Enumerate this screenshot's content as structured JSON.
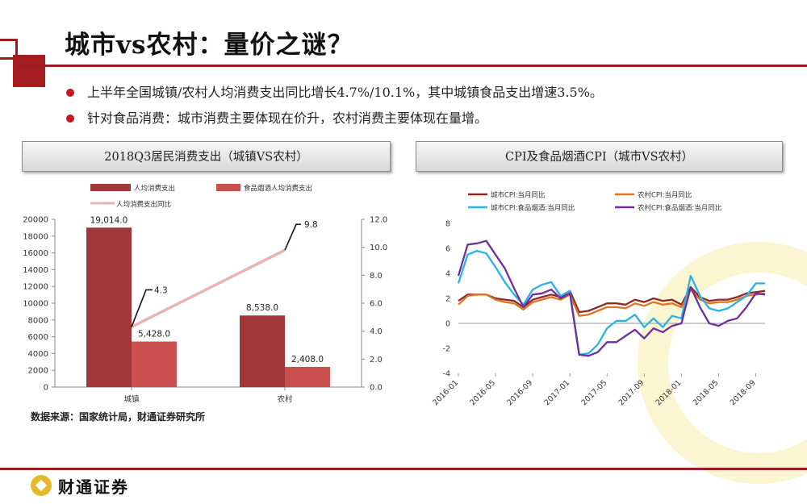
{
  "title": "城市vs农村：量价之谜？",
  "bullets": [
    "上半年全国城镇/农村人均消费支出同比增长4.7%/10.1%，其中城镇食品支出增速3.5%。",
    "针对食品消费：城市消费主要体现在价升，农村消费主要体现在量增。"
  ],
  "left_panel_title": "2018Q3居民消费支出（城镇VS农村）",
  "right_panel_title": "CPI及食品烟酒CPI（城市VS农村）",
  "source": "数据来源：国家统计局，财通证券研究所",
  "logo_text": "财通证券",
  "colors": {
    "accent": "#9b1b1f",
    "bar1": "#a2373a",
    "bar2": "#c9504f",
    "line_pct": "#e7b3b5"
  },
  "chart_data": [
    {
      "type": "bar",
      "categories": [
        "城镇",
        "农村"
      ],
      "series": [
        {
          "name": "人均消费支出",
          "values": [
            19014.0,
            8538.0
          ],
          "labels": [
            "19,014.0",
            "8,538.0"
          ],
          "color": "#a2373a"
        },
        {
          "name": "食品烟酒人均消费支出",
          "values": [
            5428.0,
            2408.0
          ],
          "labels": [
            "5,428.0",
            "2,408.0"
          ],
          "color": "#c9504f"
        },
        {
          "name": "人均消费支出同比",
          "axis": "right",
          "values": [
            4.3,
            9.8
          ],
          "labels": [
            "4.3",
            "9.8"
          ],
          "color": "#e7b3b5"
        }
      ],
      "ylim": [
        0,
        20000
      ],
      "yticks": [
        "0",
        "2000",
        "4000",
        "6000",
        "8000",
        "10000",
        "12000",
        "14000",
        "16000",
        "18000",
        "20000"
      ],
      "y2lim": [
        0,
        12
      ],
      "y2ticks": [
        "0.0",
        "2.0",
        "4.0",
        "6.0",
        "8.0",
        "10.0",
        "12.0"
      ],
      "legend": "top"
    },
    {
      "type": "line",
      "x": [
        "2016-01",
        "2016-02",
        "2016-03",
        "2016-04",
        "2016-05",
        "2016-06",
        "2016-07",
        "2016-08",
        "2016-09",
        "2016-10",
        "2016-11",
        "2016-12",
        "2017-01",
        "2017-02",
        "2017-03",
        "2017-04",
        "2017-05",
        "2017-06",
        "2017-07",
        "2017-08",
        "2017-09",
        "2017-10",
        "2017-11",
        "2017-12",
        "2018-01",
        "2018-02",
        "2018-03",
        "2018-04",
        "2018-05",
        "2018-06",
        "2018-07",
        "2018-08",
        "2018-09",
        "2018-10"
      ],
      "xticks": [
        "2016-01",
        "2016-05",
        "2016-09",
        "2017-01",
        "2017-05",
        "2017-09",
        "2018-01",
        "2018-05",
        "2018-09"
      ],
      "series": [
        {
          "name": "城市CPI:当月同比",
          "color": "#8b2a2a",
          "values": [
            1.8,
            2.3,
            2.3,
            2.3,
            2.0,
            1.9,
            1.8,
            1.3,
            1.9,
            2.1,
            2.3,
            2.1,
            2.6,
            0.9,
            1.0,
            1.3,
            1.6,
            1.6,
            1.5,
            1.9,
            1.7,
            2.0,
            1.8,
            1.9,
            1.5,
            2.9,
            2.1,
            1.8,
            1.9,
            1.9,
            2.1,
            2.4,
            2.5,
            2.6
          ]
        },
        {
          "name": "农村CPI:当月同比",
          "color": "#e2731f",
          "values": [
            1.5,
            2.2,
            2.3,
            2.3,
            1.9,
            1.7,
            1.6,
            1.1,
            1.7,
            1.9,
            2.1,
            1.9,
            2.3,
            0.6,
            0.7,
            1.0,
            1.3,
            1.3,
            1.2,
            1.6,
            1.4,
            1.7,
            1.5,
            1.6,
            1.3,
            2.7,
            1.9,
            1.6,
            1.7,
            1.7,
            1.9,
            2.2,
            2.3,
            2.4
          ]
        },
        {
          "name": "城市CPI:食品烟酒:当月同比",
          "color": "#2ab2e8",
          "values": [
            3.2,
            5.5,
            5.8,
            5.6,
            4.5,
            3.3,
            2.3,
            1.5,
            2.7,
            3.1,
            3.3,
            2.2,
            2.6,
            -2.5,
            -2.4,
            -1.7,
            -0.4,
            0.2,
            0.2,
            0.7,
            -0.3,
            0.4,
            -0.3,
            0.6,
            0.4,
            3.8,
            2.2,
            1.2,
            1.0,
            1.2,
            1.7,
            2.2,
            3.2,
            3.2
          ]
        },
        {
          "name": "农村CPI:食品烟酒:当月同比",
          "color": "#6f2f9e",
          "values": [
            3.8,
            6.3,
            6.4,
            6.6,
            5.5,
            4.4,
            2.8,
            1.3,
            2.3,
            2.4,
            2.7,
            2.0,
            2.4,
            -2.5,
            -2.6,
            -2.3,
            -1.5,
            -1.5,
            -1.0,
            -0.5,
            -1.2,
            -0.4,
            -0.7,
            -0.2,
            0.0,
            2.9,
            1.3,
            0.0,
            -0.2,
            0.2,
            0.4,
            1.3,
            2.4,
            2.3
          ]
        }
      ],
      "ylim": [
        -4,
        8
      ],
      "yticks": [
        "-4",
        "-2",
        "0",
        "2",
        "4",
        "6",
        "8"
      ],
      "legend": "top"
    }
  ]
}
